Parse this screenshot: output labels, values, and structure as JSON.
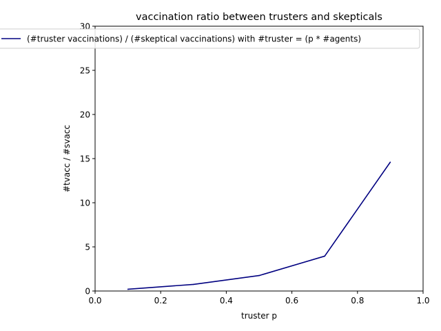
{
  "chart_data": {
    "type": "line",
    "title": "vaccination ratio between trusters and skepticals",
    "xlabel": "truster p",
    "ylabel": "#tvacc / #svacc",
    "xlim": [
      0.0,
      1.0
    ],
    "ylim": [
      0,
      30
    ],
    "x_ticks": [
      0.0,
      0.2,
      0.4,
      0.6,
      0.8,
      1.0
    ],
    "x_tick_labels": [
      "0.0",
      "0.2",
      "0.4",
      "0.6",
      "0.8",
      "1.0"
    ],
    "y_ticks": [
      0,
      5,
      10,
      15,
      20,
      25,
      30
    ],
    "y_tick_labels": [
      "0",
      "5",
      "10",
      "15",
      "20",
      "25",
      "30"
    ],
    "grid": false,
    "legend": {
      "placement": "top-center"
    },
    "series": [
      {
        "name": "(#truster vaccinations) / (#skeptical vaccinations) with #truster = (p * #agents)",
        "color": "#000080",
        "x": [
          0.1,
          0.3,
          0.5,
          0.7,
          0.9
        ],
        "y": [
          0.2,
          0.75,
          1.75,
          3.95,
          14.6
        ]
      }
    ]
  }
}
